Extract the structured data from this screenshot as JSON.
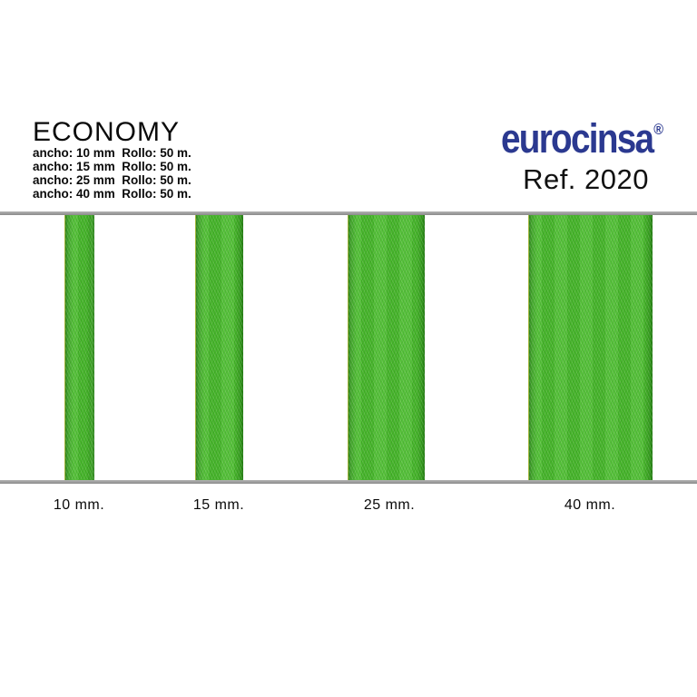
{
  "page": {
    "background_color": "#ffffff"
  },
  "header": {
    "product_line": "ECONOMY",
    "specs": [
      "ancho: 10 mm  Rollo: 50 m.",
      "ancho: 15 mm  Rollo: 50 m.",
      "ancho: 25 mm  Rollo: 50 m.",
      "ancho: 40 mm  Rollo: 50 m."
    ]
  },
  "brand": {
    "name": "eurocinsa",
    "registered_mark": "®",
    "reference": "Ref. 2020",
    "logo_color": "#2b3990"
  },
  "ribbons": {
    "material_color": "#4abc2d",
    "edge_color": "#2f9a1c",
    "selvage_color": "#a3b63e",
    "rule_color": "#9d9d9d",
    "items": [
      {
        "label": "10 mm.",
        "width_mm": 10
      },
      {
        "label": "15 mm.",
        "width_mm": 15
      },
      {
        "label": "25 mm.",
        "width_mm": 25
      },
      {
        "label": "40 mm.",
        "width_mm": 40
      }
    ]
  }
}
